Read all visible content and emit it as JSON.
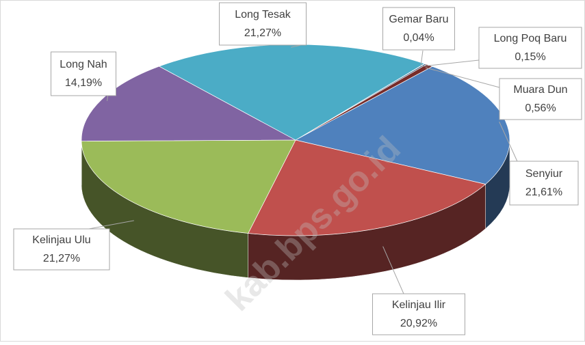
{
  "chart_data": {
    "type": "pie",
    "categories": [
      "Gemar Baru",
      "Long Poq Baru",
      "Muara Dun",
      "Senyiur",
      "Kelinjau Ilir",
      "Kelinjau Ulu",
      "Long Nah",
      "Long Tesak"
    ],
    "values": [
      0.04,
      0.15,
      0.56,
      21.61,
      20.92,
      21.27,
      14.19,
      21.27
    ],
    "value_labels": [
      "0,04%",
      "0,15%",
      "0,56%",
      "21,61%",
      "20,92%",
      "21,27%",
      "14,19%",
      "21,27%"
    ],
    "colors": [
      "#f79646",
      "#2c4d75",
      "#772c2a",
      "#4f81bd",
      "#c0504d",
      "#9bbb59",
      "#8064a2",
      "#4bacc6"
    ],
    "watermark": "kab.bps.go.id"
  }
}
